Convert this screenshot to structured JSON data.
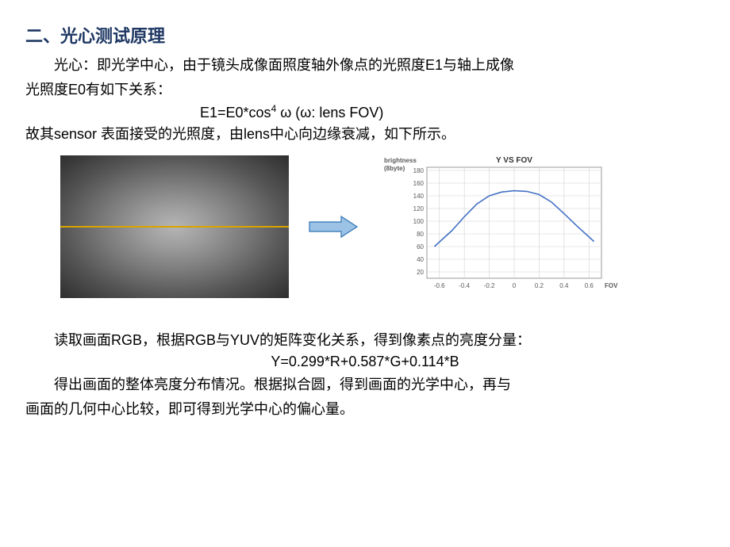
{
  "title": "二、光心测试原理",
  "intro_line1": "光心：即光学中心，由于镜头成像面照度轴外像点的光照度E1与轴上成像",
  "intro_line2": "光照度E0有如下关系：",
  "formula1_l": "E1=E0*cos",
  "formula1_sup": "4",
  "formula1_r": " ω       (ω:  lens FOV)",
  "intro_line3": "故其sensor 表面接受的光照度，由lens中心向边缘衰减，如下所示。",
  "vignette": {
    "line_color": "#d8a500"
  },
  "arrow": {
    "fill": "#9cc2e5",
    "stroke": "#2e74b5"
  },
  "chart": {
    "title": "Y VS FOV",
    "ylabel_l1": "brightness",
    "ylabel_l2": "(8byte)",
    "xlabel": "FOV",
    "grid_color": "#d0d0d0",
    "axis_color": "#808080",
    "series_color": "#4472c4",
    "text_color": "#595959",
    "title_color": "#333333",
    "font_size_axis": 8,
    "font_size_title": 10,
    "x_ticks": [
      -0.6,
      -0.4,
      -0.2,
      0,
      0.2,
      0.4,
      0.6
    ],
    "y_ticks": [
      20,
      40,
      60,
      80,
      100,
      120,
      140,
      160,
      180
    ],
    "xlim": [
      -0.7,
      0.7
    ],
    "ylim": [
      10,
      185
    ],
    "data_x": [
      -0.64,
      -0.5,
      -0.4,
      -0.3,
      -0.2,
      -0.1,
      0,
      0.1,
      0.2,
      0.3,
      0.4,
      0.5,
      0.64
    ],
    "data_y": [
      60,
      85,
      107,
      127,
      140,
      146,
      148,
      147,
      142,
      130,
      112,
      93,
      68
    ]
  },
  "body2_line1": "读取画面RGB，根据RGB与YUV的矩阵变化关系，得到像素点的亮度分量：",
  "formula2": "Y=0.299*R+0.587*G+0.114*B",
  "body2_line2": "得出画面的整体亮度分布情况。根据拟合圆，得到画面的光学中心，再与",
  "body2_line3": "画面的几何中心比较，即可得到光学中心的偏心量。"
}
